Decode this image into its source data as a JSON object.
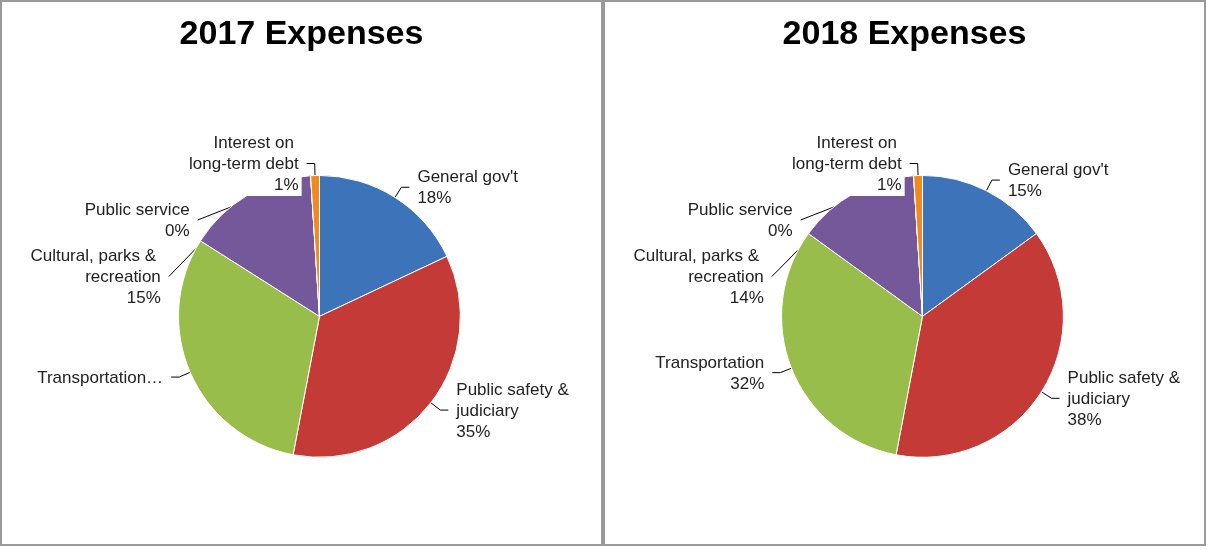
{
  "chart_data": [
    {
      "type": "pie",
      "title": "2017 Expenses",
      "categories": [
        "General gov't",
        "Public safety & judiciary",
        "Transportation…",
        "Cultural, parks & recreation",
        "Public service",
        "Interest on long-term debt"
      ],
      "values": [
        18,
        35,
        31,
        15,
        0,
        1
      ],
      "value_labels": [
        "18%",
        "35%",
        null,
        "15%",
        "0%",
        "1%"
      ],
      "colors": [
        "#3d73b9",
        "#c43a36",
        "#98bd4a",
        "#75589a",
        "#2f9fb5",
        "#f08a1d"
      ]
    },
    {
      "type": "pie",
      "title": "2018 Expenses",
      "categories": [
        "General gov't",
        "Public safety & judiciary",
        "Transportation",
        "Cultural, parks & recreation",
        "Public service",
        "Interest on long-term debt"
      ],
      "values": [
        15,
        38,
        32,
        14,
        0,
        1
      ],
      "value_labels": [
        "15%",
        "38%",
        "32%",
        "14%",
        "0%",
        "1%"
      ],
      "colors": [
        "#3d73b9",
        "#c43a36",
        "#98bd4a",
        "#75589a",
        "#2f9fb5",
        "#f08a1d"
      ]
    }
  ]
}
